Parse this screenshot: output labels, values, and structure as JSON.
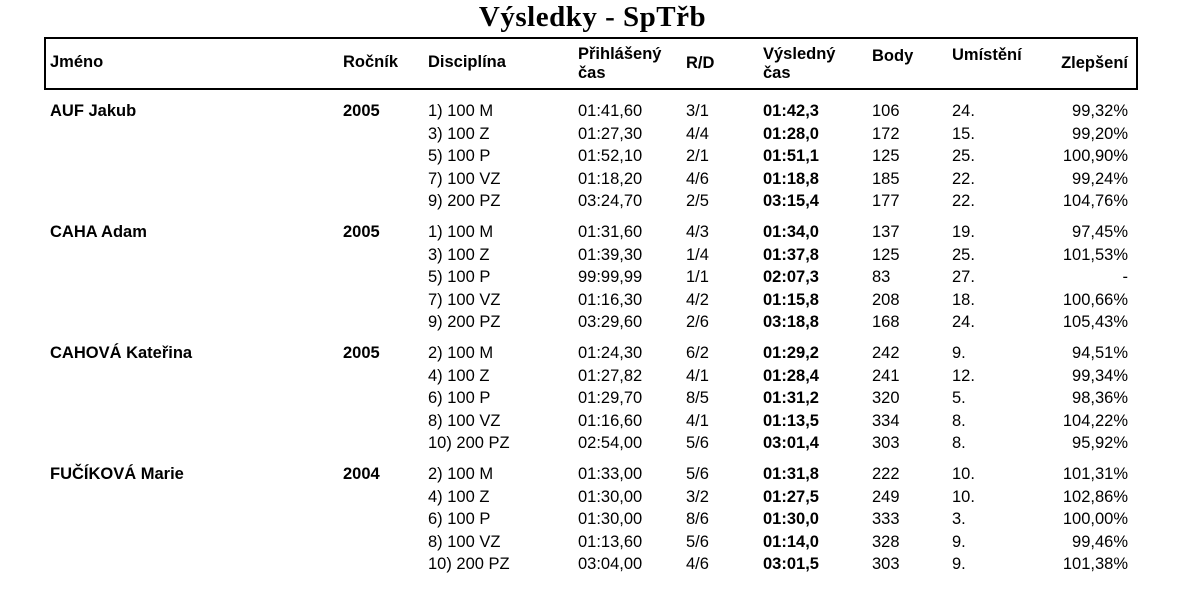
{
  "title": "Výsledky - SpTřb",
  "table": {
    "columns": [
      {
        "key": "name",
        "label": "Jméno"
      },
      {
        "key": "year",
        "label": "Ročník"
      },
      {
        "key": "discipline",
        "label": "Disciplína"
      },
      {
        "key": "entry_time",
        "label": "Přihlášený čas"
      },
      {
        "key": "rd",
        "label": "R/D"
      },
      {
        "key": "result_time",
        "label": "Výsledný čas"
      },
      {
        "key": "points",
        "label": "Body"
      },
      {
        "key": "place",
        "label": "Umístění"
      },
      {
        "key": "improvement",
        "label": "Zlepšení"
      }
    ],
    "swimmers": [
      {
        "name": "AUF Jakub",
        "year": "2005",
        "events": [
          {
            "discipline": "1) 100 M",
            "entry_time": "01:41,60",
            "rd": "3/1",
            "result_time": "01:42,3",
            "points": "106",
            "place": "24.",
            "improvement": "99,32%"
          },
          {
            "discipline": "3) 100 Z",
            "entry_time": "01:27,30",
            "rd": "4/4",
            "result_time": "01:28,0",
            "points": "172",
            "place": "15.",
            "improvement": "99,20%"
          },
          {
            "discipline": "5) 100 P",
            "entry_time": "01:52,10",
            "rd": "2/1",
            "result_time": "01:51,1",
            "points": "125",
            "place": "25.",
            "improvement": "100,90%"
          },
          {
            "discipline": "7) 100 VZ",
            "entry_time": "01:18,20",
            "rd": "4/6",
            "result_time": "01:18,8",
            "points": "185",
            "place": "22.",
            "improvement": "99,24%"
          },
          {
            "discipline": "9) 200 PZ",
            "entry_time": "03:24,70",
            "rd": "2/5",
            "result_time": "03:15,4",
            "points": "177",
            "place": "22.",
            "improvement": "104,76%"
          }
        ]
      },
      {
        "name": "CAHA Adam",
        "year": "2005",
        "events": [
          {
            "discipline": "1) 100 M",
            "entry_time": "01:31,60",
            "rd": "4/3",
            "result_time": "01:34,0",
            "points": "137",
            "place": "19.",
            "improvement": "97,45%"
          },
          {
            "discipline": "3) 100 Z",
            "entry_time": "01:39,30",
            "rd": "1/4",
            "result_time": "01:37,8",
            "points": "125",
            "place": "25.",
            "improvement": "101,53%"
          },
          {
            "discipline": "5) 100 P",
            "entry_time": "99:99,99",
            "rd": "1/1",
            "result_time": "02:07,3",
            "points": "83",
            "place": "27.",
            "improvement": "-"
          },
          {
            "discipline": "7) 100 VZ",
            "entry_time": "01:16,30",
            "rd": "4/2",
            "result_time": "01:15,8",
            "points": "208",
            "place": "18.",
            "improvement": "100,66%"
          },
          {
            "discipline": "9) 200 PZ",
            "entry_time": "03:29,60",
            "rd": "2/6",
            "result_time": "03:18,8",
            "points": "168",
            "place": "24.",
            "improvement": "105,43%"
          }
        ]
      },
      {
        "name": "CAHOVÁ Kateřina",
        "year": "2005",
        "events": [
          {
            "discipline": "2) 100 M",
            "entry_time": "01:24,30",
            "rd": "6/2",
            "result_time": "01:29,2",
            "points": "242",
            "place": "9.",
            "improvement": "94,51%"
          },
          {
            "discipline": "4) 100 Z",
            "entry_time": "01:27,82",
            "rd": "4/1",
            "result_time": "01:28,4",
            "points": "241",
            "place": "12.",
            "improvement": "99,34%"
          },
          {
            "discipline": "6) 100 P",
            "entry_time": "01:29,70",
            "rd": "8/5",
            "result_time": "01:31,2",
            "points": "320",
            "place": "5.",
            "improvement": "98,36%"
          },
          {
            "discipline": "8) 100 VZ",
            "entry_time": "01:16,60",
            "rd": "4/1",
            "result_time": "01:13,5",
            "points": "334",
            "place": "8.",
            "improvement": "104,22%"
          },
          {
            "discipline": "10) 200 PZ",
            "entry_time": "02:54,00",
            "rd": "5/6",
            "result_time": "03:01,4",
            "points": "303",
            "place": "8.",
            "improvement": "95,92%"
          }
        ]
      },
      {
        "name": "FUČÍKOVÁ Marie",
        "year": "2004",
        "events": [
          {
            "discipline": "2) 100 M",
            "entry_time": "01:33,00",
            "rd": "5/6",
            "result_time": "01:31,8",
            "points": "222",
            "place": "10.",
            "improvement": "101,31%"
          },
          {
            "discipline": "4) 100 Z",
            "entry_time": "01:30,00",
            "rd": "3/2",
            "result_time": "01:27,5",
            "points": "249",
            "place": "10.",
            "improvement": "102,86%"
          },
          {
            "discipline": "6) 100 P",
            "entry_time": "01:30,00",
            "rd": "8/6",
            "result_time": "01:30,0",
            "points": "333",
            "place": "3.",
            "improvement": "100,00%"
          },
          {
            "discipline": "8) 100 VZ",
            "entry_time": "01:13,60",
            "rd": "5/6",
            "result_time": "01:14,0",
            "points": "328",
            "place": "9.",
            "improvement": "99,46%"
          },
          {
            "discipline": "10) 200 PZ",
            "entry_time": "03:04,00",
            "rd": "4/6",
            "result_time": "03:01,5",
            "points": "303",
            "place": "9.",
            "improvement": "101,38%"
          }
        ]
      }
    ]
  }
}
